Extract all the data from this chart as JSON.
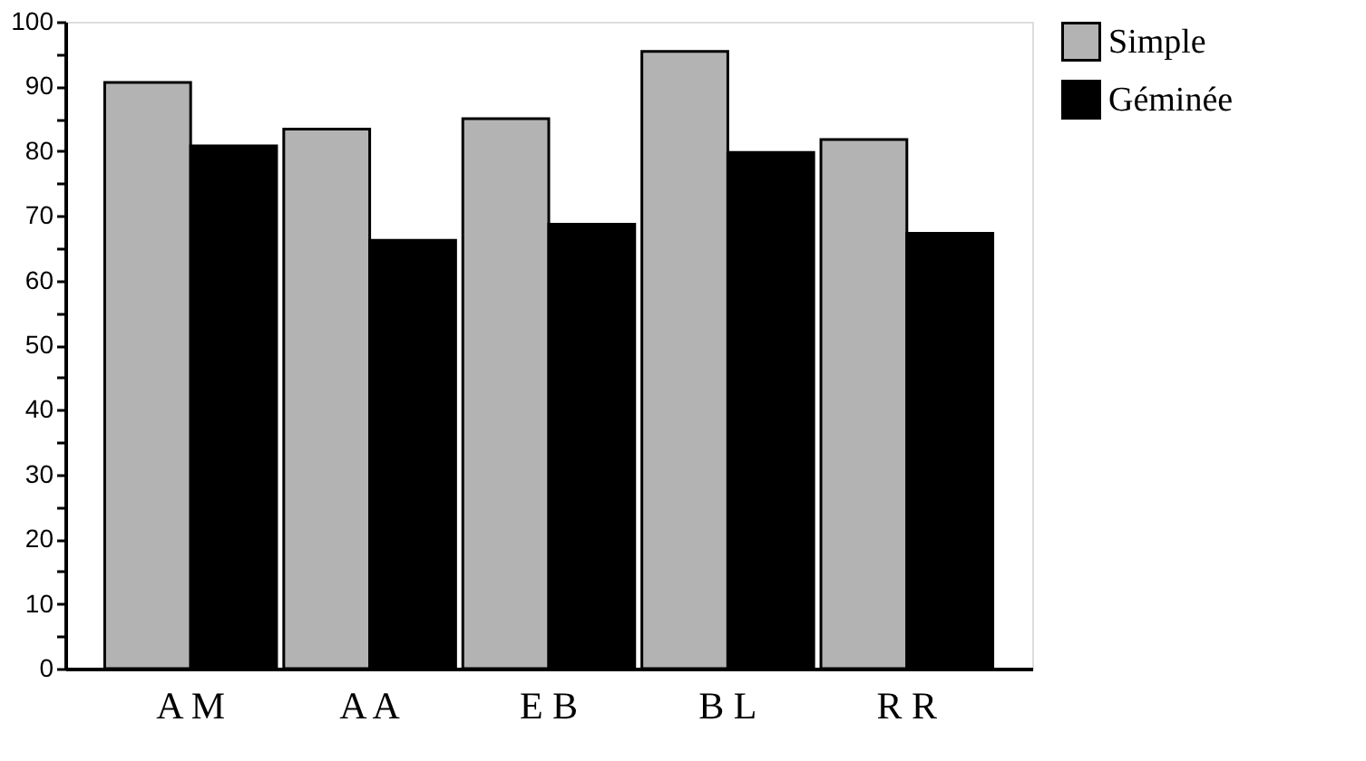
{
  "chart_data": {
    "type": "bar",
    "categories": [
      "A M",
      "A A",
      "E B",
      "B L",
      "R R"
    ],
    "series": [
      {
        "name": "Simple",
        "color": "#b3b3b3",
        "values": [
          90.6,
          83.4,
          85.0,
          95.4,
          81.8
        ]
      },
      {
        "name": "Géminée",
        "color": "#000000",
        "values": [
          80.8,
          66.2,
          68.7,
          79.8,
          67.3
        ]
      }
    ],
    "ylim": [
      0,
      100
    ],
    "yticks": [
      0,
      {
        "value": 5,
        "label": null
      },
      10,
      {
        "value": 15,
        "label": null
      },
      20,
      {
        "value": 25,
        "label": null
      },
      30,
      {
        "value": 35,
        "label": null
      },
      40,
      {
        "value": 45,
        "label": null
      },
      50,
      {
        "value": 55,
        "label": null
      },
      60,
      {
        "value": 65,
        "label": null
      },
      70,
      {
        "value": 75,
        "label": null
      },
      80,
      {
        "value": 85,
        "label": null
      },
      90,
      {
        "value": 95,
        "label": null
      },
      100
    ],
    "grid": false,
    "legend": "right"
  }
}
